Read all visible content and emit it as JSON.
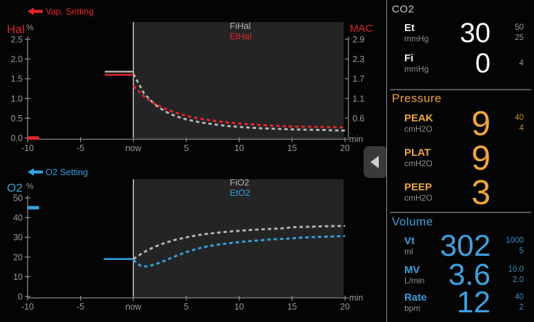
{
  "colors": {
    "red": "#e2262b",
    "blue": "#35a0dd",
    "orange": "#f0a43c",
    "gray_series": "#b4b4b4",
    "axis": "#8a8a8a",
    "tick_text": "#9b9b9b",
    "prediction_bg": "#242424",
    "panel_divider": "#575757"
  },
  "tab": {
    "icon": "chevron-left-icon"
  },
  "chart_data": [
    {
      "id": "hal",
      "type": "line",
      "title": "Halothane trend and prediction",
      "legend": {
        "icon": "arrow-left-icon",
        "label": "Vap. Setting",
        "color": "#e2262b"
      },
      "y_label": "Hal",
      "y_unit": "%",
      "y_label_color": "#e2262b",
      "y_max": 2.5,
      "y_ticks": [
        {
          "v": 0.0,
          "label": "0.0"
        },
        {
          "v": 0.5,
          "label": "0.5"
        },
        {
          "v": 1.0,
          "label": "1.0"
        },
        {
          "v": 1.5,
          "label": "1.5"
        },
        {
          "v": 2.0,
          "label": "2.0"
        },
        {
          "v": 2.5,
          "label": "2.5"
        }
      ],
      "x_min": -10,
      "x_max": 20,
      "x_unit": "min",
      "x_ticks": [
        {
          "t": -10,
          "label": "-10"
        },
        {
          "t": -5,
          "label": "-5"
        },
        {
          "t": 0,
          "label": "now"
        },
        {
          "t": 5,
          "label": "5"
        },
        {
          "t": 10,
          "label": "10"
        },
        {
          "t": 15,
          "label": "15"
        },
        {
          "t": 20,
          "label": "20"
        }
      ],
      "right_axis": {
        "label": "MAC",
        "color": "#e2262b",
        "ticks": [
          {
            "pos": 2.5,
            "label": "2.9"
          },
          {
            "pos": 2.0,
            "label": "2.3"
          },
          {
            "pos": 1.5,
            "label": "1.7"
          },
          {
            "pos": 1.0,
            "label": "1.1"
          },
          {
            "pos": 0.5,
            "label": "0.6"
          }
        ]
      },
      "setting_marker": {
        "value": 0.0,
        "color": "#e2262b"
      },
      "series": [
        {
          "name": "FiHal",
          "color": "#b4b4b4",
          "history": {
            "from": -2.7,
            "to": 0,
            "value": 1.68
          },
          "prediction": [
            [
              0,
              1.62
            ],
            [
              1,
              1.13
            ],
            [
              2,
              0.85
            ],
            [
              3,
              0.67
            ],
            [
              4,
              0.55
            ],
            [
              5,
              0.47
            ],
            [
              6,
              0.41
            ],
            [
              7,
              0.365
            ],
            [
              8,
              0.33
            ],
            [
              9,
              0.3
            ],
            [
              10,
              0.28
            ],
            [
              11,
              0.26
            ],
            [
              12,
              0.245
            ],
            [
              13,
              0.235
            ],
            [
              14,
              0.225
            ],
            [
              15,
              0.215
            ],
            [
              16,
              0.21
            ],
            [
              17,
              0.205
            ],
            [
              18,
              0.2
            ],
            [
              19,
              0.19
            ],
            [
              20,
              0.185
            ]
          ]
        },
        {
          "name": "EtHal",
          "color": "#e2262b",
          "history": {
            "from": -2.7,
            "to": 0,
            "value": 1.6
          },
          "prediction": [
            [
              0,
              1.32
            ],
            [
              1,
              1.05
            ],
            [
              2,
              0.87
            ],
            [
              3,
              0.74
            ],
            [
              4,
              0.64
            ],
            [
              5,
              0.56
            ],
            [
              6,
              0.5
            ],
            [
              7,
              0.46
            ],
            [
              8,
              0.42
            ],
            [
              9,
              0.39
            ],
            [
              10,
              0.365
            ],
            [
              11,
              0.345
            ],
            [
              12,
              0.33
            ],
            [
              13,
              0.315
            ],
            [
              14,
              0.3
            ],
            [
              15,
              0.29
            ],
            [
              16,
              0.285
            ],
            [
              17,
              0.28
            ],
            [
              18,
              0.275
            ],
            [
              19,
              0.27
            ],
            [
              20,
              0.265
            ]
          ]
        }
      ]
    },
    {
      "id": "o2",
      "type": "line",
      "title": "O2 trend and prediction",
      "legend": {
        "icon": "arrow-left-icon",
        "label": "O2 Setting",
        "color": "#35a0dd"
      },
      "y_label": "O2",
      "y_unit": "%",
      "y_label_color": "#35a0dd",
      "y_max": 50,
      "y_ticks": [
        {
          "v": 0,
          "label": "0"
        },
        {
          "v": 10,
          "label": "10"
        },
        {
          "v": 20,
          "label": "20"
        },
        {
          "v": 30,
          "label": "30"
        },
        {
          "v": 40,
          "label": "40"
        },
        {
          "v": 50,
          "label": "50"
        }
      ],
      "x_min": -10,
      "x_max": 20,
      "x_unit": "min",
      "x_ticks": [
        {
          "t": -10,
          "label": "-10"
        },
        {
          "t": -5,
          "label": "-5"
        },
        {
          "t": 0,
          "label": "now"
        },
        {
          "t": 5,
          "label": "5"
        },
        {
          "t": 10,
          "label": "10"
        },
        {
          "t": 15,
          "label": "15"
        },
        {
          "t": 20,
          "label": "20"
        }
      ],
      "setting_marker": {
        "value": 45,
        "color": "#35a0dd"
      },
      "series": [
        {
          "name": "FiO2",
          "color": "#b4b4b4",
          "history": null,
          "prediction": [
            [
              0,
              19
            ],
            [
              1,
              22.5
            ],
            [
              2,
              25.2
            ],
            [
              3,
              27.2
            ],
            [
              4,
              28.8
            ],
            [
              5,
              30
            ],
            [
              6,
              31
            ],
            [
              7,
              31.8
            ],
            [
              8,
              32.4
            ],
            [
              9,
              32.9
            ],
            [
              10,
              33.3
            ],
            [
              11,
              33.7
            ],
            [
              12,
              34
            ],
            [
              13,
              34.3
            ],
            [
              14,
              34.5
            ],
            [
              15,
              35.1
            ],
            [
              16,
              35.3
            ],
            [
              17,
              35.4
            ],
            [
              18,
              35.6
            ],
            [
              19,
              35.7
            ],
            [
              20,
              35.8
            ]
          ]
        },
        {
          "name": "EtO2",
          "color": "#35a0dd",
          "history": {
            "from": -2.8,
            "to": 0,
            "value": 19
          },
          "prediction": [
            [
              0,
              18.5
            ],
            [
              0.6,
              15.8
            ],
            [
              1.2,
              15.2
            ],
            [
              2,
              16.2
            ],
            [
              3,
              18.2
            ],
            [
              4,
              20.5
            ],
            [
              5,
              22.5
            ],
            [
              6,
              24.2
            ],
            [
              7,
              25.4
            ],
            [
              8,
              26.3
            ],
            [
              9,
              27.0
            ],
            [
              10,
              27.6
            ],
            [
              11,
              28.1
            ],
            [
              12,
              28.5
            ],
            [
              13,
              28.9
            ],
            [
              14,
              29.2
            ],
            [
              15,
              29.5
            ],
            [
              16,
              29.9
            ],
            [
              17,
              30.1
            ],
            [
              18,
              30.3
            ],
            [
              19,
              30.45
            ],
            [
              20,
              30.6
            ]
          ]
        }
      ]
    }
  ],
  "panel": {
    "sections": [
      {
        "title": "CO2",
        "rows": [
          {
            "label": "Et",
            "unit": "mmHg",
            "value": "30",
            "limit_high": "50",
            "limit_low": "25"
          },
          {
            "label": "Fi",
            "unit": "mmHg",
            "value": "0",
            "limit_high": "4"
          }
        ]
      },
      {
        "title": "Pressure",
        "rows": [
          {
            "label": "PEAK",
            "unit": "cmH2O",
            "value": "9",
            "limit_high": "40",
            "limit_low": "4"
          },
          {
            "label": "PLAT",
            "unit": "cmH2O",
            "value": "9"
          },
          {
            "label": "PEEP",
            "unit": "cmH2O",
            "value": "3"
          }
        ]
      },
      {
        "title": "Volume",
        "rows": [
          {
            "label": "Vt",
            "unit": "ml",
            "value": "302",
            "limit_high": "1000",
            "limit_low": "5"
          },
          {
            "label": "MV",
            "unit": "L/min",
            "value": "3.6",
            "limit_high": "10.0",
            "limit_low": "2.0"
          },
          {
            "label": "Rate",
            "unit": "bpm",
            "value": "12",
            "limit_high": "40",
            "limit_low": "2"
          }
        ]
      }
    ]
  }
}
